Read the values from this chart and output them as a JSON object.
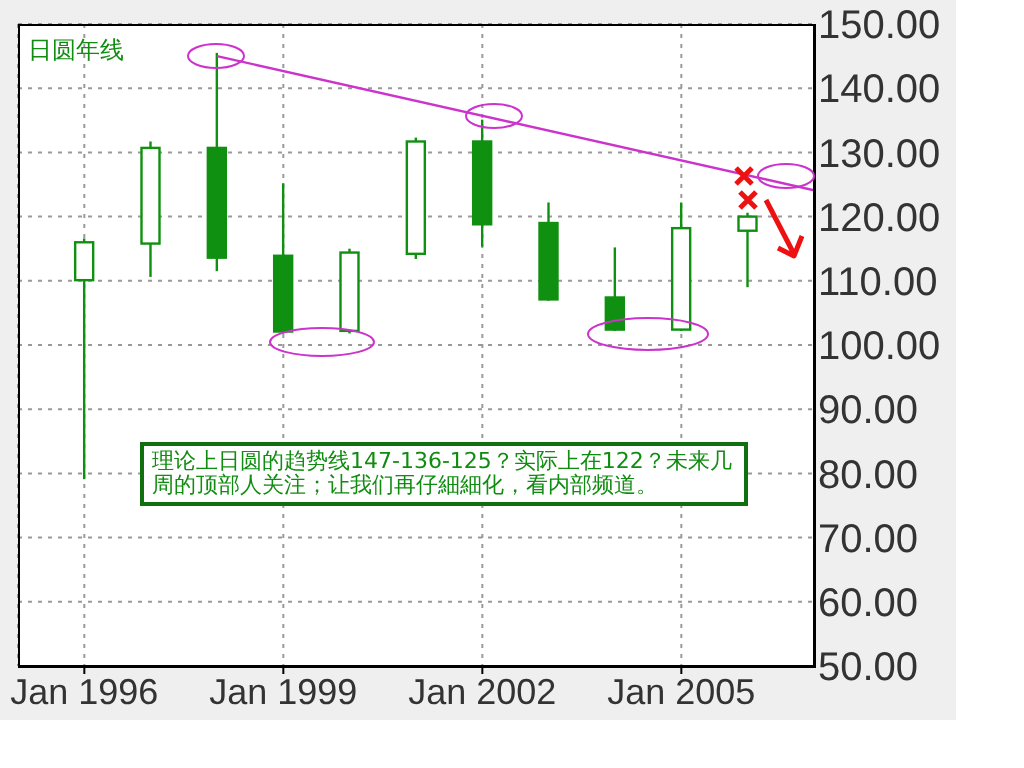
{
  "chart_data": {
    "type": "candlestick",
    "title": "日圆年线",
    "x": [
      "1996",
      "1997",
      "1998",
      "1999",
      "2000",
      "2001",
      "2002",
      "2003",
      "2004",
      "2005",
      "2006"
    ],
    "ohlc": [
      [
        110.1,
        116.6,
        79.1,
        116.0
      ],
      [
        115.8,
        131.7,
        110.6,
        130.7
      ],
      [
        130.7,
        145.5,
        111.5,
        113.6
      ],
      [
        113.9,
        125.2,
        101.8,
        102.1
      ],
      [
        102.2,
        115.0,
        101.8,
        114.4
      ],
      [
        114.2,
        132.3,
        113.4,
        131.7
      ],
      [
        131.7,
        135.1,
        115.3,
        118.8
      ],
      [
        119.0,
        122.2,
        106.9,
        107.1
      ],
      [
        107.4,
        115.2,
        102.2,
        102.4
      ],
      [
        102.4,
        122.2,
        102.2,
        118.2
      ],
      [
        117.8,
        120.6,
        109.0,
        120.0
      ]
    ],
    "color": "#109010",
    "series": [
      {
        "type": "line",
        "color": "#cc33cc",
        "x": [
          "1998",
          "2007"
        ],
        "values": [
          145.0,
          124.1
        ]
      }
    ],
    "xlim": [
      "1995",
      "2007"
    ],
    "xticks": [
      {
        "value": "1996",
        "label": "Jan 1996"
      },
      {
        "value": "1999",
        "label": "Jan 1999"
      },
      {
        "value": "2002",
        "label": "Jan 2002"
      },
      {
        "value": "2005",
        "label": "Jan 2005"
      }
    ],
    "ylim": [
      50,
      150
    ],
    "yticks": [
      {
        "value": 50,
        "label": "50.00"
      },
      {
        "value": 60,
        "label": "60.00"
      },
      {
        "value": 70,
        "label": "70.00"
      },
      {
        "value": 80,
        "label": "80.00"
      },
      {
        "value": 90,
        "label": "90.00"
      },
      {
        "value": 100,
        "label": "100.00"
      },
      {
        "value": 110,
        "label": "110.00"
      },
      {
        "value": 120,
        "label": "120.00"
      },
      {
        "value": 130,
        "label": "130.00"
      },
      {
        "value": 140,
        "label": "140.00"
      },
      {
        "value": 150,
        "label": "150.00"
      }
    ],
    "grid": true,
    "annotations": [
      "理论上日圆的趋势线147-136-125？实际上在122？未来几周的顶部人关注；让我们再仔細細化，看内部频道。"
    ]
  }
}
